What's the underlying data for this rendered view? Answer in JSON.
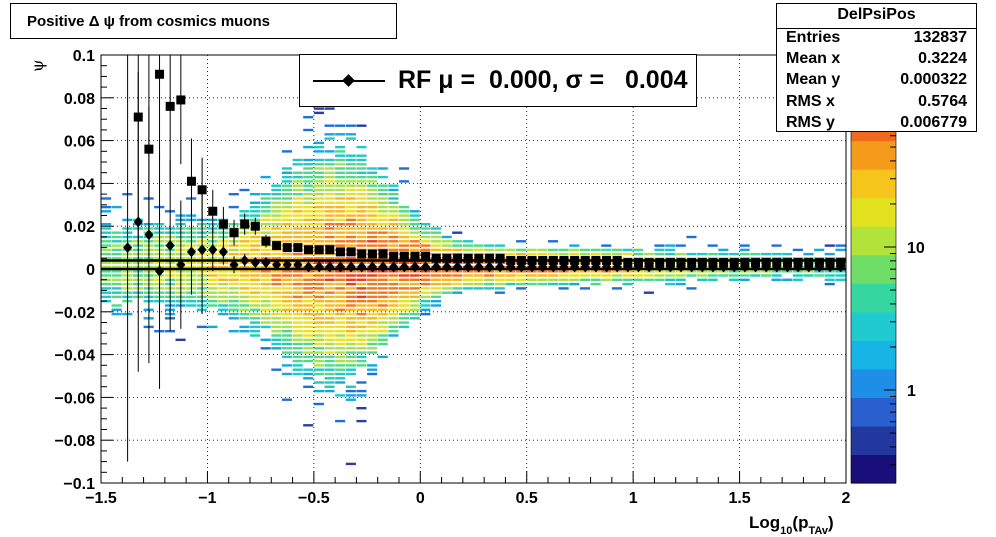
{
  "chart_data": {
    "type": "heatmap",
    "title": "Positive Δ ψ from cosmics muons",
    "xlabel": "Log10(pTAv)",
    "ylabel": "ψ",
    "xlim": [
      -1.5,
      2
    ],
    "ylim": [
      -0.1,
      0.1
    ],
    "x_ticks": [
      "−1.5",
      "−1",
      "−0.5",
      "0",
      "0.5",
      "1",
      "1.5",
      "2"
    ],
    "y_ticks": [
      "−0.1",
      "−0.08",
      "−0.06",
      "−0.04",
      "−0.02",
      "0",
      "0.02",
      "0.04",
      "0.06",
      "0.08",
      "0.1"
    ],
    "z_scale": "log",
    "z_ticks": [
      "1",
      "10"
    ],
    "grid": true,
    "stats": {
      "name": "DelPsiPos",
      "rows": [
        {
          "label": "Entries",
          "value": "132837"
        },
        {
          "label": "Mean x",
          "value": "0.3224"
        },
        {
          "label": "Mean y",
          "value": "0.000322"
        },
        {
          "label": "RMS x",
          "value": "0.5764"
        },
        {
          "label": "RMS y",
          "value": "0.006779"
        }
      ]
    },
    "legend": {
      "text": "RF μ =  0.000, σ =   0.004",
      "placement": "top-center"
    },
    "series": [
      {
        "marker": "square",
        "x": [
          -1.325,
          -1.275,
          -1.225,
          -1.175,
          -1.125,
          -1.075,
          -1.025,
          -0.975,
          -0.925,
          -0.875,
          -0.825,
          -0.775,
          -0.725,
          -0.675,
          -0.625,
          -0.575,
          -0.525,
          -0.475,
          -0.425,
          -0.375,
          -0.325,
          -0.275,
          -0.225,
          -0.175,
          -0.125,
          -0.075,
          -0.025,
          0.025,
          0.075,
          0.125,
          0.175,
          0.225,
          0.275,
          0.325,
          0.375,
          0.425,
          0.475,
          0.525,
          0.575,
          0.625,
          0.675,
          0.725,
          0.775,
          0.825,
          0.875,
          0.925,
          0.975,
          1.025,
          1.075,
          1.125,
          1.175,
          1.225,
          1.275,
          1.325,
          1.375,
          1.425,
          1.475,
          1.525,
          1.575,
          1.625,
          1.675,
          1.725,
          1.775,
          1.825,
          1.875,
          1.925,
          1.975
        ],
        "y": [
          0.071,
          0.056,
          0.091,
          0.076,
          0.079,
          0.041,
          0.037,
          0.027,
          0.021,
          0.017,
          0.021,
          0.02,
          0.013,
          0.011,
          0.01,
          0.01,
          0.009,
          0.009,
          0.009,
          0.008,
          0.008,
          0.007,
          0.007,
          0.007,
          0.006,
          0.006,
          0.006,
          0.006,
          0.005,
          0.005,
          0.005,
          0.005,
          0.005,
          0.005,
          0.005,
          0.004,
          0.004,
          0.004,
          0.004,
          0.004,
          0.004,
          0.004,
          0.004,
          0.004,
          0.004,
          0.004,
          0.003,
          0.003,
          0.003,
          0.003,
          0.003,
          0.003,
          0.003,
          0.003,
          0.003,
          0.003,
          0.003,
          0.003,
          0.003,
          0.003,
          0.003,
          0.003,
          0.003,
          0.003,
          0.003,
          0.003,
          0.003
        ],
        "yerr": [
          0.06,
          0.05,
          0.04,
          0.035,
          0.03,
          0.02,
          0.015,
          0.01,
          0.008,
          0.006,
          0.005,
          0.004,
          0.003,
          0.002,
          0.002,
          0.001,
          0.001,
          0.001,
          0.001,
          0.001,
          0.001,
          0.001,
          0.001,
          0.001,
          0.001,
          0.001,
          0.001,
          0.001,
          0.001,
          0.001,
          0.001,
          0.001,
          0.001,
          0.001,
          0.001,
          0.001,
          0.001,
          0.001,
          0.001,
          0.001,
          0.001,
          0.001,
          0.001,
          0.001,
          0.001,
          0.001,
          0.001,
          0.001,
          0.001,
          0.001,
          0.001,
          0.001,
          0.001,
          0.001,
          0.001,
          0.001,
          0.001,
          0.001,
          0.001,
          0.001,
          0.001,
          0.001,
          0.001,
          0.001,
          0.001,
          0.001,
          0.001
        ]
      },
      {
        "marker": "diamond",
        "x": [
          -1.375,
          -1.325,
          -1.275,
          -1.225,
          -1.175,
          -1.125,
          -1.075,
          -1.025,
          -0.975,
          -0.925,
          -0.875,
          -0.825,
          -0.775,
          -0.725,
          -0.675,
          -0.625,
          -0.575,
          -0.525,
          -0.475,
          -0.425,
          -0.375,
          -0.325,
          -0.275,
          -0.225,
          -0.175,
          -0.125,
          -0.075,
          -0.025,
          0.025,
          0.075,
          0.125,
          0.175,
          0.225,
          0.275,
          0.325,
          0.375,
          0.425,
          0.475,
          0.525,
          0.575,
          0.625,
          0.675,
          0.725,
          0.775,
          0.825,
          0.875,
          0.925,
          0.975,
          1.025,
          1.075,
          1.125,
          1.175,
          1.225,
          1.275,
          1.325,
          1.375,
          1.425,
          1.475,
          1.525,
          1.575,
          1.625,
          1.675,
          1.725,
          1.775,
          1.825,
          1.875,
          1.925,
          1.975
        ],
        "y": [
          0.01,
          0.022,
          0.016,
          -0.001,
          0.011,
          0.002,
          0.008,
          0.009,
          0.009,
          0.008,
          0.002,
          0.004,
          0.003,
          0.003,
          0.002,
          0.002,
          0.002,
          0.001,
          0.001,
          0.001,
          0.001,
          0.001,
          0.001,
          0.001,
          0.001,
          0.001,
          0.001,
          0.001,
          0.001,
          0.001,
          0.001,
          0.001,
          0.001,
          0.001,
          0.001,
          0.001,
          0.001,
          0.001,
          0.001,
          0.001,
          0.001,
          0.001,
          0.001,
          0.001,
          0.001,
          0.001,
          0.001,
          0.001,
          0.001,
          0.001,
          0.001,
          0.001,
          0.001,
          0.001,
          0.001,
          0.001,
          0.001,
          0.001,
          0.001,
          0.001,
          0.001,
          0.001,
          0.001,
          0.001,
          0.001,
          0.001,
          0.001,
          0.001
        ],
        "yerr": [
          0.1,
          0.07,
          0.06,
          0.055,
          0.04,
          0.03,
          0.02,
          0.03,
          0.01,
          0.006,
          0.004,
          0.003,
          0.002,
          0.002,
          0.001,
          0.001,
          0.001,
          0.001,
          0.001,
          0.001,
          0.001,
          0.001,
          0.001,
          0.001,
          0.001,
          0.001,
          0.001,
          0.001,
          0.001,
          0.001,
          0.001,
          0.001,
          0.001,
          0.001,
          0.001,
          0.001,
          0.001,
          0.001,
          0.001,
          0.001,
          0.001,
          0.001,
          0.001,
          0.001,
          0.001,
          0.001,
          0.001,
          0.001,
          0.001,
          0.001,
          0.001,
          0.001,
          0.001,
          0.001,
          0.001,
          0.001,
          0.001,
          0.001,
          0.001,
          0.001,
          0.001,
          0.001,
          0.001,
          0.001,
          0.001,
          0.001,
          0.001,
          0.001
        ]
      }
    ],
    "lines": [
      {
        "y": 0.004,
        "from_x": -1.5,
        "to_x": 2
      },
      {
        "y": 0.0,
        "from_x": -1.5,
        "to_x": 2
      }
    ]
  }
}
